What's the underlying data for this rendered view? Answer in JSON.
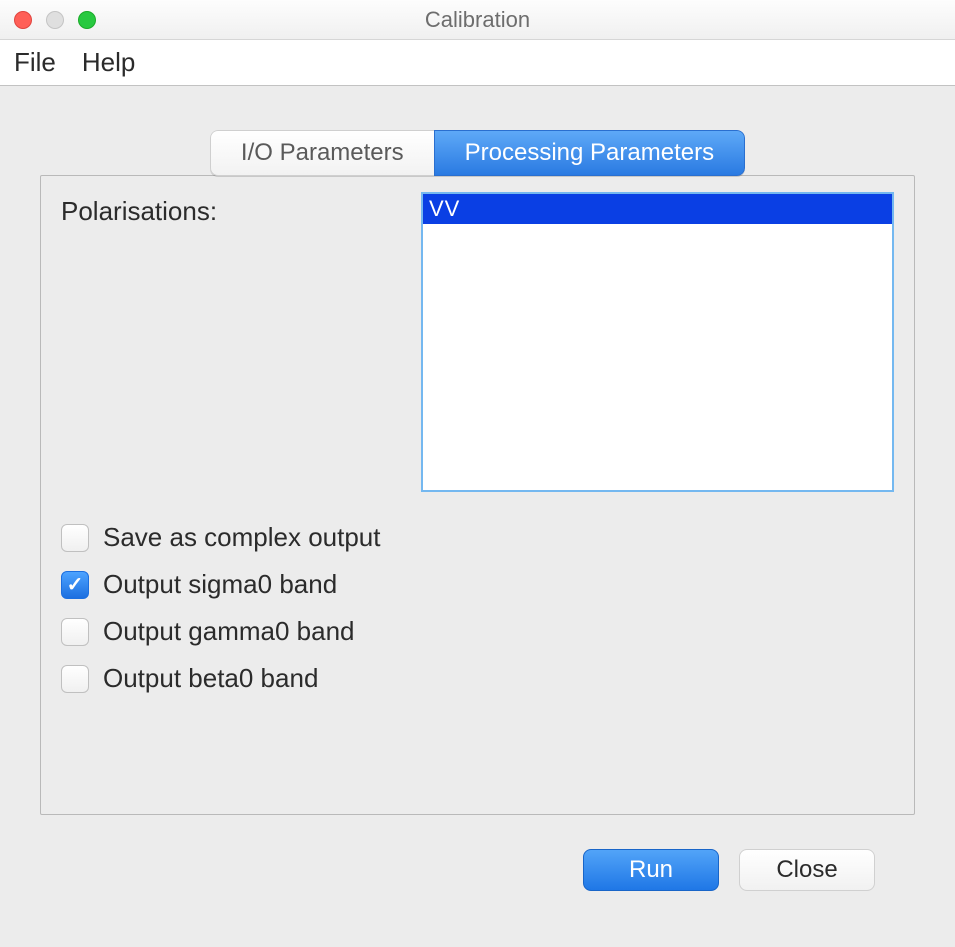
{
  "window": {
    "title": "Calibration"
  },
  "menubar": {
    "file": "File",
    "help": "Help"
  },
  "tabs": {
    "io": "I/O Parameters",
    "processing": "Processing Parameters"
  },
  "panel": {
    "polarisations_label": "Polarisations:",
    "listbox": {
      "items": [
        "VV"
      ],
      "selected_index": 0
    },
    "checkboxes": [
      {
        "label": "Save as complex output",
        "checked": false
      },
      {
        "label": "Output sigma0 band",
        "checked": true
      },
      {
        "label": "Output gamma0 band",
        "checked": false
      },
      {
        "label": "Output beta0 band",
        "checked": false
      }
    ]
  },
  "buttons": {
    "run": "Run",
    "close": "Close"
  },
  "colors": {
    "accent": "#1f77e6",
    "selection": "#0a3fe4",
    "panel_border": "#b9b9b9",
    "background": "#ececec"
  }
}
